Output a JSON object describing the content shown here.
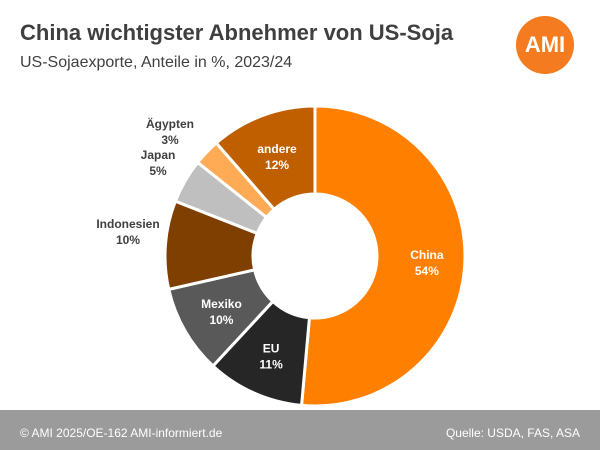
{
  "header": {
    "title": "China wichtigster Abnehmer von US-Soja",
    "subtitle": "US-Sojaexporte, Anteile in %, 2023/24",
    "logo_text": "AMI"
  },
  "chart_data": {
    "type": "pie",
    "variant": "donut",
    "title": "China wichtigster Abnehmer von US-Soja",
    "subtitle": "US-Sojaexporte, Anteile in %, 2023/24",
    "unit": "%",
    "slices": [
      {
        "label": "China",
        "value": 54,
        "value_text": "54%",
        "color": "#ff7f00",
        "text_color": "#ffffff"
      },
      {
        "label": "EU",
        "value": 11,
        "value_text": "11%",
        "color": "#262626",
        "text_color": "#ffffff"
      },
      {
        "label": "Mexiko",
        "value": 10,
        "value_text": "10%",
        "color": "#595959",
        "text_color": "#ffffff"
      },
      {
        "label": "Indonesien",
        "value": 10,
        "value_text": "10%",
        "color": "#7f3f00",
        "text_color": "#404040"
      },
      {
        "label": "Japan",
        "value": 5,
        "value_text": "5%",
        "color": "#bfbfbf",
        "text_color": "#404040"
      },
      {
        "label": "Ägypten",
        "value": 3,
        "value_text": "3%",
        "color": "#ffaa55",
        "text_color": "#404040"
      },
      {
        "label": "andere",
        "value": 12,
        "value_text": "12%",
        "color": "#bf5f00",
        "text_color": "#ffffff"
      }
    ]
  },
  "footer": {
    "left": "© AMI 2025/OE-162 AMI-informiert.de",
    "right": "Quelle: USDA, FAS, ASA"
  }
}
